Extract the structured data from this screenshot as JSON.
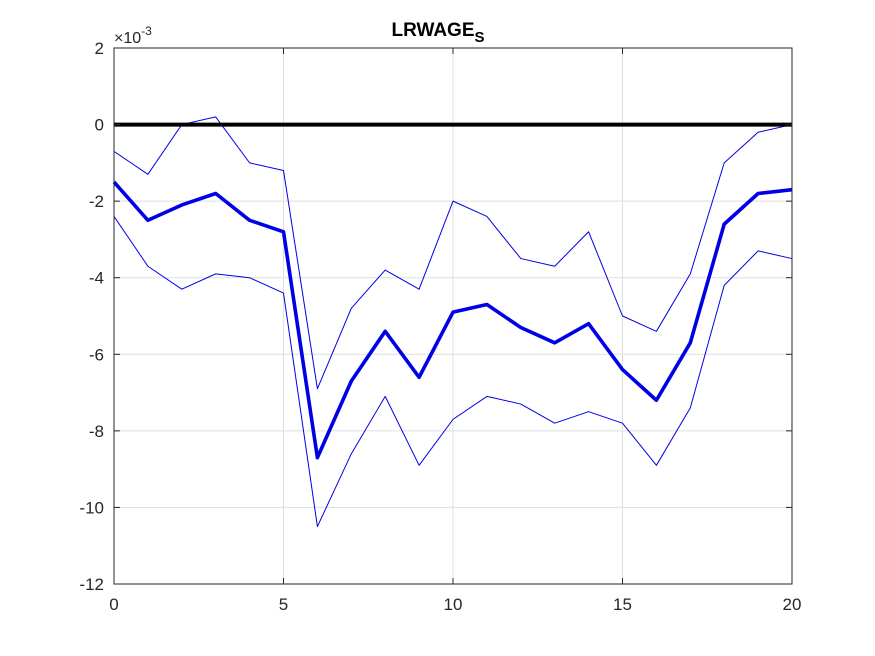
{
  "chart_data": {
    "type": "line",
    "title_main": "LRWAGE",
    "title_sub": "S",
    "y_exponent_prefix": "×10",
    "y_exponent_power": "-3",
    "x": [
      0,
      1,
      2,
      3,
      4,
      5,
      6,
      7,
      8,
      9,
      10,
      11,
      12,
      13,
      14,
      15,
      16,
      17,
      18,
      19,
      20
    ],
    "xlim": [
      0,
      20
    ],
    "ylim": [
      -12,
      2
    ],
    "xticks": [
      0,
      5,
      10,
      15,
      20
    ],
    "yticks": [
      -12,
      -10,
      -8,
      -6,
      -4,
      -2,
      0,
      2
    ],
    "grid": true,
    "series": [
      {
        "role": "median",
        "color": "#0000e6",
        "values": [
          -1.5,
          -2.5,
          -2.1,
          -1.8,
          -2.5,
          -2.8,
          -8.7,
          -6.7,
          -5.4,
          -6.6,
          -4.9,
          -4.7,
          -5.3,
          -5.7,
          -5.2,
          -6.4,
          -7.2,
          -5.7,
          -2.6,
          -1.8,
          -1.7
        ]
      },
      {
        "role": "upper",
        "color": "#0000e6",
        "values": [
          -0.7,
          -1.3,
          0.0,
          0.2,
          -1.0,
          -1.2,
          -6.9,
          -4.8,
          -3.8,
          -4.3,
          -2.0,
          -2.4,
          -3.5,
          -3.7,
          -2.8,
          -5.0,
          -5.4,
          -3.9,
          -1.0,
          -0.2,
          0.0
        ]
      },
      {
        "role": "lower",
        "color": "#0000e6",
        "values": [
          -2.4,
          -3.7,
          -4.3,
          -3.9,
          -4.0,
          -4.4,
          -10.5,
          -8.6,
          -7.1,
          -8.9,
          -7.7,
          -7.1,
          -7.3,
          -7.8,
          -7.5,
          -7.8,
          -8.9,
          -7.4,
          -4.2,
          -3.3,
          -3.5
        ]
      },
      {
        "role": "zero",
        "color": "#000000",
        "values": [
          0,
          0,
          0,
          0,
          0,
          0,
          0,
          0,
          0,
          0,
          0,
          0,
          0,
          0,
          0,
          0,
          0,
          0,
          0,
          0,
          0
        ]
      }
    ]
  }
}
